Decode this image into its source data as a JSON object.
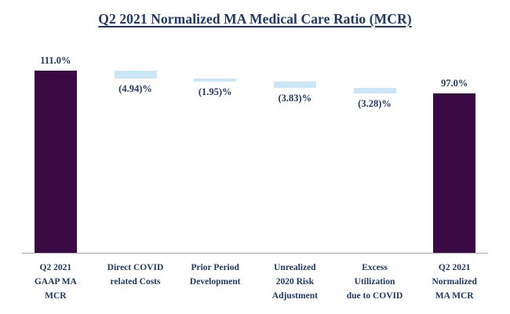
{
  "title": "Q2 2021 Normalized MA Medical Care Ratio (MCR)",
  "colors": {
    "background": "#ffffff",
    "total_bar": "#3a0842",
    "delta_bar": "#c9e7f6",
    "text": "#1f3864",
    "axis_line": "#a6a6a6"
  },
  "chart_data": {
    "type": "bar",
    "subtype": "waterfall",
    "title": "Q2 2021 Normalized MA Medical Care Ratio (MCR)",
    "unit": "%",
    "ylim": [
      0,
      111
    ],
    "grid": false,
    "legend": "none",
    "categories": [
      "Q2 2021 GAAP MA MCR",
      "Direct COVID related Costs",
      "Prior Period Development",
      "Unrealized 2020 Risk Adjustment",
      "Excess Utilization due to COVID",
      "Q2 2021 Normalized MA MCR"
    ],
    "bars": [
      {
        "category": "Q2 2021 GAAP MA MCR",
        "category_display": "Q2 2021\nGAAP MA\nMCR",
        "kind": "total",
        "value": 111.0,
        "start": 0,
        "end": 111.0,
        "label": "111.0%",
        "label_position": "above"
      },
      {
        "category": "Direct COVID related Costs",
        "category_display": "Direct COVID\nrelated Costs",
        "kind": "delta",
        "value": -4.94,
        "start": 111.0,
        "end": 106.06,
        "label": "(4.94)%",
        "label_position": "below"
      },
      {
        "category": "Prior Period Development",
        "category_display": "Prior Period\nDevelopment",
        "kind": "delta",
        "value": -1.95,
        "start": 106.06,
        "end": 104.11,
        "label": "(1.95)%",
        "label_position": "below"
      },
      {
        "category": "Unrealized 2020 Risk Adjustment",
        "category_display": "Unrealized\n2020 Risk\nAdjustment",
        "kind": "delta",
        "value": -3.83,
        "start": 104.11,
        "end": 100.28,
        "label": "(3.83)%",
        "label_position": "below"
      },
      {
        "category": "Excess Utilization due to COVID",
        "category_display": "Excess\nUtilization\ndue to COVID",
        "kind": "delta",
        "value": -3.28,
        "start": 100.28,
        "end": 97.0,
        "label": "(3.28)%",
        "label_position": "below"
      },
      {
        "category": "Q2 2021 Normalized MA MCR",
        "category_display": "Q2 2021\nNormalized\nMA MCR",
        "kind": "total",
        "value": 97.0,
        "start": 0,
        "end": 97.0,
        "label": "97.0%",
        "label_position": "above"
      }
    ]
  }
}
